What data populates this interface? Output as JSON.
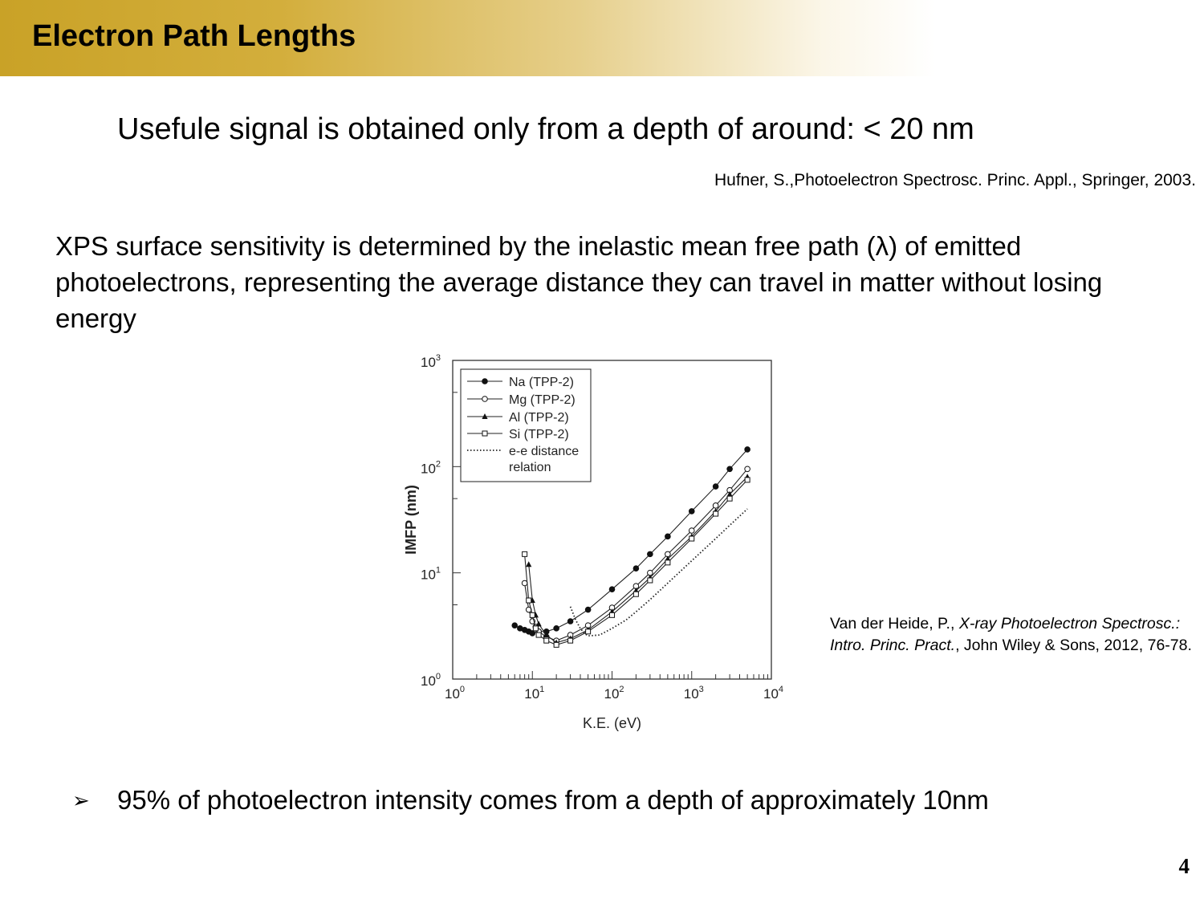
{
  "slide": {
    "title": "Electron Path Lengths",
    "subtitle": "Usefule signal is obtained only from a depth of around: < 20 nm",
    "reference_1": "Hufner, S.,Photoelectron Spectrosc. Princ. Appl., Springer, 2003.",
    "paragraph": "XPS surface sensitivity is determined by the inelastic mean free path (λ) of emitted photoelectrons, representing the average distance they can travel in matter without losing energy",
    "reference_2": {
      "authors": "Van der Heide, P., ",
      "title_italic": "X-ray Photoelectron Spectrosc.: Intro. Princ. Pract.",
      "rest": ", John Wiley & Sons, 2012, 76-78."
    },
    "bullet_symbol": "➢",
    "bullet": "95% of photoelectron intensity comes from a depth of approximately 10nm",
    "page_number": "4",
    "accent_color": "#c9a227"
  },
  "chart_data": {
    "type": "line",
    "xlabel": "K.E. (eV)",
    "ylabel": "IMFP (nm)",
    "x_scale": "log",
    "y_scale": "log",
    "xlim": [
      1,
      10000
    ],
    "ylim": [
      1,
      1000
    ],
    "x_ticks": [
      {
        "base": "10",
        "exp": "0"
      },
      {
        "base": "10",
        "exp": "1"
      },
      {
        "base": "10",
        "exp": "2"
      },
      {
        "base": "10",
        "exp": "3"
      },
      {
        "base": "10",
        "exp": "4"
      }
    ],
    "y_ticks": [
      {
        "base": "10",
        "exp": "0"
      },
      {
        "base": "10",
        "exp": "1"
      },
      {
        "base": "10",
        "exp": "2"
      },
      {
        "base": "10",
        "exp": "3"
      }
    ],
    "legend_position": "top-left",
    "series": [
      {
        "name": "Na (TPP-2)",
        "marker": "filled-circle",
        "x": [
          6,
          7,
          8,
          9,
          10,
          12,
          15,
          20,
          30,
          50,
          100,
          200,
          300,
          500,
          1000,
          2000,
          3000,
          5000
        ],
        "y": [
          3.2,
          3.0,
          2.9,
          2.8,
          2.7,
          2.8,
          2.8,
          3.0,
          3.5,
          4.5,
          7,
          11,
          15,
          22,
          38,
          65,
          95,
          145
        ]
      },
      {
        "name": "Mg (TPP-2)",
        "marker": "open-circle",
        "x": [
          8,
          9,
          10,
          11,
          12,
          15,
          20,
          30,
          50,
          100,
          200,
          300,
          500,
          1000,
          2000,
          3000,
          5000
        ],
        "y": [
          8,
          4.5,
          3.5,
          3.1,
          2.8,
          2.5,
          2.3,
          2.6,
          3.2,
          4.7,
          7.5,
          10,
          15,
          25,
          43,
          60,
          95
        ]
      },
      {
        "name": "Al (TPP-2)",
        "marker": "filled-triangle",
        "x": [
          9,
          10,
          11,
          12,
          15,
          20,
          30,
          50,
          100,
          200,
          300,
          500,
          1000,
          2000,
          3000,
          5000
        ],
        "y": [
          12,
          5.5,
          4.0,
          3.3,
          2.6,
          2.2,
          2.4,
          2.9,
          4.3,
          6.8,
          9,
          13.5,
          22,
          38,
          55,
          80
        ]
      },
      {
        "name": "Si (TPP-2)",
        "marker": "open-square",
        "x": [
          8,
          9,
          10,
          11,
          12,
          15,
          20,
          30,
          50,
          100,
          200,
          300,
          500,
          1000,
          2000,
          3000,
          5000
        ],
        "y": [
          15,
          5.5,
          4.0,
          3.0,
          2.6,
          2.3,
          2.1,
          2.3,
          2.8,
          4.0,
          6.3,
          8.5,
          12.5,
          21,
          36,
          50,
          75
        ]
      },
      {
        "name": "e-e distance relation",
        "marker": "dotted",
        "x": [
          30,
          35,
          40,
          45,
          50,
          70,
          100,
          150,
          200,
          300,
          500,
          1000,
          2000,
          3000,
          5000
        ],
        "y": [
          4.8,
          3.6,
          3.0,
          2.7,
          2.55,
          2.6,
          3.0,
          3.6,
          4.3,
          5.6,
          8,
          13,
          21,
          28,
          40
        ]
      }
    ]
  }
}
